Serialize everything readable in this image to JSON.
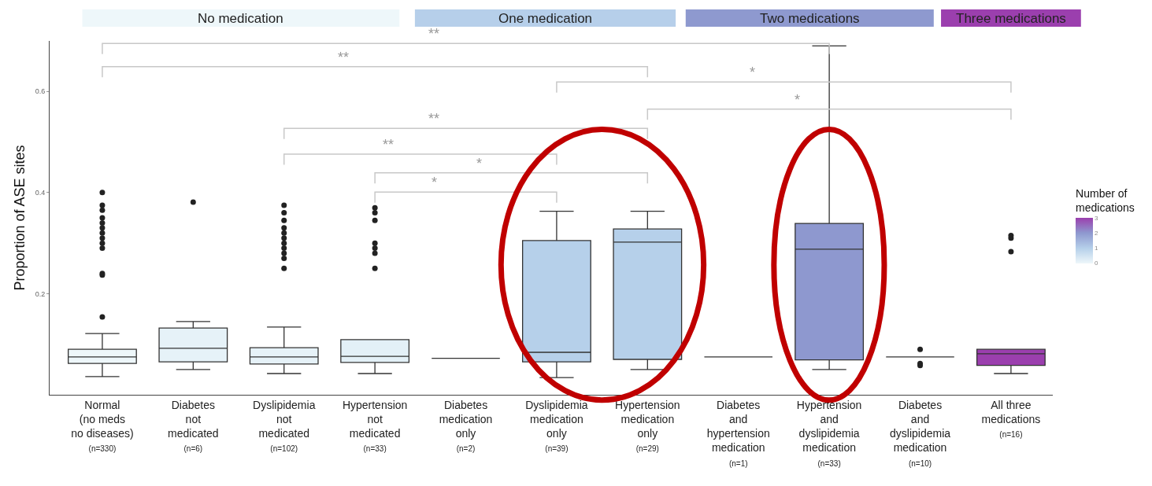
{
  "chart_data": {
    "type": "box",
    "ylabel": "Proportion of ASE sites",
    "clabel": "Number of\nmedications",
    "categories": [
      "Normal\n(no meds\nno diseases)\n(n=330)",
      "Diabetes\nnot\nmedicated\n(n=6)",
      "Dyslipidemia\nnot\nmedicated\n(n=102)",
      "Hypertension\nnot\nmedicated\n(n=33)",
      "Diabetes\nmedication\nonly\n(n=2)",
      "Dyslipidemia\nmedication\nonly\n(n=39)",
      "Hypertension\nmedication\nonly\n(n=29)",
      "Diabetes\nand\nhypertension\nmedication\n(n=1)",
      "Hypertension\nand\ndyslipidemia\nmedication\n(n=33)",
      "Diabetes\nand\ndyslipidemia\nmedication\n(n=10)",
      "All three\nmedications\n(n=16)"
    ],
    "boxes": [
      {
        "low": 0.036,
        "q1": 0.062,
        "median": 0.075,
        "q3": 0.09,
        "high": 0.121,
        "outliers": [
          0.154,
          0.237,
          0.24,
          0.29,
          0.3,
          0.31,
          0.32,
          0.33,
          0.34,
          0.35,
          0.365,
          0.375,
          0.4
        ]
      },
      {
        "low": 0.05,
        "q1": 0.065,
        "median": 0.092,
        "q3": 0.132,
        "high": 0.145,
        "outliers": [
          0.381
        ]
      },
      {
        "low": 0.042,
        "q1": 0.061,
        "median": 0.075,
        "q3": 0.093,
        "high": 0.134,
        "outliers": [
          0.25,
          0.27,
          0.28,
          0.29,
          0.3,
          0.31,
          0.32,
          0.33,
          0.345,
          0.36,
          0.375
        ]
      },
      {
        "low": 0.042,
        "q1": 0.064,
        "median": 0.076,
        "q3": 0.109,
        "high": 0.109,
        "outliers": [
          0.25,
          0.28,
          0.29,
          0.3,
          0.345,
          0.36,
          0.37
        ]
      },
      {
        "low": 0.072,
        "q1": 0.072,
        "median": 0.072,
        "q3": 0.072,
        "high": 0.072
      },
      {
        "low": 0.034,
        "q1": 0.065,
        "median": 0.084,
        "q3": 0.305,
        "high": 0.363
      },
      {
        "low": 0.05,
        "q1": 0.07,
        "median": 0.302,
        "q3": 0.328,
        "high": 0.363
      },
      {
        "low": 0.075,
        "q1": 0.075,
        "median": 0.075,
        "q3": 0.075,
        "high": 0.075
      },
      {
        "low": 0.05,
        "q1": 0.069,
        "median": 0.288,
        "q3": 0.339,
        "high": 0.69
      },
      {
        "low": 0.075,
        "q1": 0.075,
        "median": 0.075,
        "q3": 0.075,
        "high": 0.075,
        "outliers": [
          0.058,
          0.062,
          0.09
        ]
      },
      {
        "low": 0.042,
        "q1": 0.058,
        "median": 0.081,
        "q3": 0.09,
        "high": 0.09,
        "outliers": [
          0.283,
          0.31,
          0.315
        ]
      }
    ],
    "colors": [
      "#eef7fa",
      "#e6f2f8",
      "#e6f2f8",
      "#e3f0f7",
      "#333333",
      "#b6d0ea",
      "#b6d0ea",
      "#333333",
      "#8e98cf",
      "#333333",
      "#9b3fae"
    ],
    "clim": [
      0,
      3
    ],
    "cticks": [
      0,
      1,
      2,
      3
    ],
    "ylim": [
      0,
      0.7
    ],
    "yticks": [
      0.2,
      0.4,
      0.6
    ],
    "annotations": [
      "No medication",
      "One medication",
      "Two medications",
      "Three medications",
      "**",
      "**",
      "*",
      "*",
      "**",
      "**",
      "*",
      "*"
    ]
  }
}
